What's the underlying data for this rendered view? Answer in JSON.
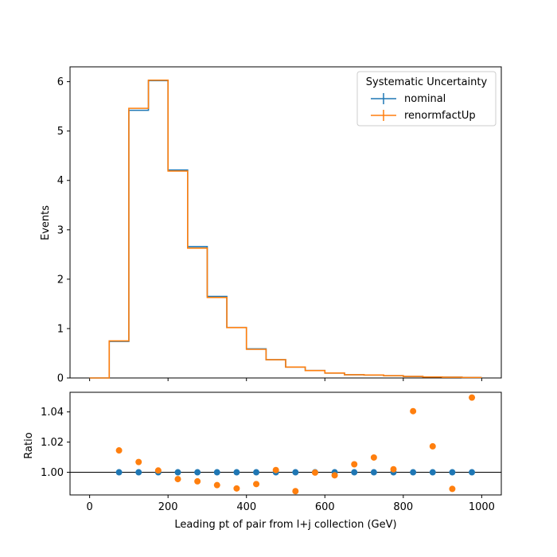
{
  "chart_data": [
    {
      "type": "line",
      "panel": "main",
      "xlabel": "",
      "ylabel": "Events",
      "xlim": [
        -50,
        1050
      ],
      "ylim": [
        0,
        6.3
      ],
      "yticks": [
        0,
        1,
        2,
        3,
        4,
        5,
        6
      ],
      "ytick_labels": [
        "0",
        "1",
        "2",
        "3",
        "4",
        "5",
        "6"
      ],
      "xticks": [
        0,
        200,
        400,
        600,
        800,
        1000
      ],
      "step": true,
      "bin_edges": [
        0,
        50,
        100,
        150,
        200,
        250,
        300,
        350,
        400,
        450,
        500,
        550,
        600,
        650,
        700,
        750,
        800,
        850,
        900,
        950,
        1000
      ],
      "legend": {
        "title": "Systematic Uncertainty",
        "placement": "top-right",
        "entries": [
          "nominal",
          "renormfactUp"
        ]
      },
      "series": [
        {
          "name": "nominal",
          "color": "#1f77b4",
          "values": [
            0.0,
            0.74,
            5.42,
            6.02,
            4.21,
            2.66,
            1.65,
            1.02,
            0.59,
            0.37,
            0.22,
            0.15,
            0.1,
            0.065,
            0.06,
            0.045,
            0.03,
            0.02,
            0.015,
            0.01
          ]
        },
        {
          "name": "renormfactUp",
          "color": "#ff7f0e",
          "values": [
            0.0,
            0.75,
            5.46,
            6.03,
            4.19,
            2.63,
            1.63,
            1.02,
            0.58,
            0.37,
            0.22,
            0.15,
            0.1,
            0.065,
            0.06,
            0.046,
            0.031,
            0.02,
            0.015,
            0.01
          ]
        }
      ]
    },
    {
      "type": "scatter",
      "panel": "ratio",
      "xlabel": "Leading pt of pair from l+j collection (GeV)",
      "ylabel": "Ratio",
      "xlim": [
        -50,
        1050
      ],
      "ylim": [
        0.985,
        1.053
      ],
      "yticks": [
        1.0,
        1.02,
        1.04
      ],
      "ytick_labels": [
        "1.00",
        "1.02",
        "1.04"
      ],
      "xticks": [
        0,
        200,
        400,
        600,
        800,
        1000
      ],
      "xtick_labels": [
        "0",
        "200",
        "400",
        "600",
        "800",
        "1000"
      ],
      "reference_line": 1.0,
      "x": [
        75,
        125,
        175,
        225,
        275,
        325,
        375,
        425,
        475,
        525,
        575,
        625,
        675,
        725,
        775,
        825,
        875,
        925,
        975
      ],
      "series": [
        {
          "name": "nominal",
          "color": "#1f77b4",
          "values": [
            1.0,
            1.0,
            1.0,
            1.0,
            1.0,
            1.0,
            1.0,
            1.0,
            1.0,
            1.0,
            1.0,
            1.0,
            1.0,
            1.0,
            1.0,
            1.0,
            1.0,
            1.0,
            1.0
          ]
        },
        {
          "name": "renormfactUp",
          "color": "#ff7f0e",
          "values": [
            1.0145,
            1.0068,
            1.0012,
            0.9955,
            0.994,
            0.9915,
            0.9893,
            0.9922,
            1.0015,
            0.9875,
            0.9998,
            0.998,
            1.0053,
            1.0098,
            1.002,
            1.0405,
            1.0172,
            0.989,
            1.0495
          ]
        }
      ]
    }
  ]
}
